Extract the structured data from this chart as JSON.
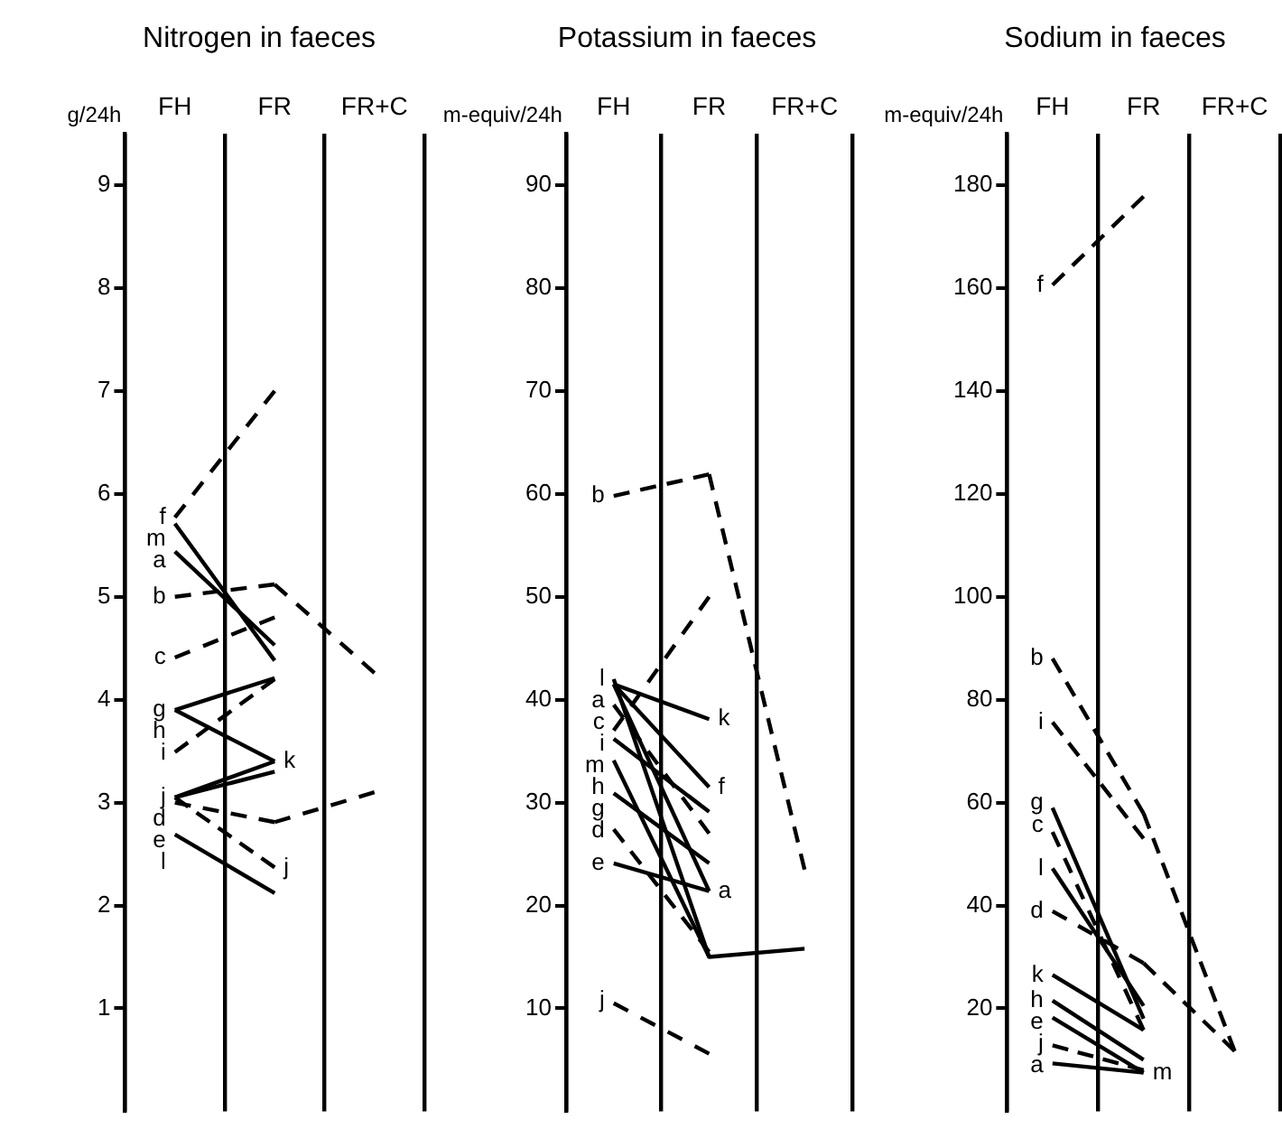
{
  "chart_data": [
    {
      "type": "line",
      "title": "Nitrogen in faeces",
      "ylabel": "g/24h",
      "categories": [
        "FH",
        "FR",
        "FR+C"
      ],
      "ylim": [
        0,
        9.5
      ],
      "yticks": [
        1,
        2,
        3,
        4,
        5,
        6,
        7,
        8,
        9
      ],
      "grid": "x",
      "marker": "none",
      "series": [
        {
          "color": "#000000",
          "line_style": "dashed",
          "values": [
            5.77,
            7.0,
            null
          ]
        },
        {
          "color": "#000000",
          "line_style": "solid",
          "values": [
            5.71,
            4.38,
            null
          ]
        },
        {
          "color": "#000000",
          "line_style": "solid",
          "values": [
            5.44,
            4.53,
            null
          ]
        },
        {
          "color": "#000000",
          "line_style": "dashed",
          "values": [
            5.0,
            5.12,
            4.26
          ]
        },
        {
          "color": "#000000",
          "line_style": "dashed",
          "values": [
            4.41,
            4.8,
            null
          ]
        },
        {
          "color": "#000000",
          "line_style": "solid",
          "values": [
            3.9,
            4.21,
            null
          ]
        },
        {
          "color": "#000000",
          "line_style": "solid",
          "values": [
            3.9,
            3.4,
            null
          ]
        },
        {
          "color": "#000000",
          "line_style": "dashed",
          "values": [
            3.49,
            4.2,
            null
          ]
        },
        {
          "color": "#000000",
          "line_style": "dashed",
          "values": [
            3.05,
            2.37,
            null
          ]
        },
        {
          "color": "#000000",
          "line_style": "solid",
          "values": [
            3.05,
            3.3,
            null
          ]
        },
        {
          "color": "#000000",
          "line_style": "solid",
          "values": [
            3.05,
            3.4,
            null
          ]
        },
        {
          "color": "#000000",
          "line_style": "dashed",
          "values": [
            3.0,
            2.81,
            3.1
          ]
        },
        {
          "color": "#000000",
          "line_style": "solid",
          "values": [
            2.69,
            2.12,
            null
          ]
        }
      ],
      "annotations": [
        {
          "text": "f",
          "x": "FH",
          "y": 5.77
        },
        {
          "text": "m",
          "x": "FH",
          "y": 5.71
        },
        {
          "text": "a",
          "x": "FH",
          "y": 5.44
        },
        {
          "text": "b",
          "x": "FH",
          "y": 5.0
        },
        {
          "text": "c",
          "x": "FH",
          "y": 4.41
        },
        {
          "text": "g",
          "x": "FH",
          "y": 3.9
        },
        {
          "text": "h",
          "x": "FH",
          "y": 3.9
        },
        {
          "text": "i",
          "x": "FH",
          "y": 3.49
        },
        {
          "text": "j",
          "x": "FH",
          "y": 3.05
        },
        {
          "text": "d",
          "x": "FH",
          "y": 3.05
        },
        {
          "text": "e",
          "x": "FH",
          "y": 3.0
        },
        {
          "text": "l",
          "x": "FH",
          "y": 2.69
        },
        {
          "text": "k",
          "x": "FR",
          "y": 3.4
        },
        {
          "text": "j",
          "x": "FR",
          "y": 2.37
        }
      ]
    },
    {
      "type": "line",
      "title": "Potassium in faeces",
      "ylabel": "m-equiv/24h",
      "categories": [
        "FH",
        "FR",
        "FR+C"
      ],
      "ylim": [
        0,
        95
      ],
      "yticks": [
        10,
        20,
        30,
        40,
        50,
        60,
        70,
        80,
        90
      ],
      "grid": "x",
      "marker": "none",
      "series": [
        {
          "color": "#000000",
          "line_style": "dashed",
          "values": [
            59.8,
            61.9,
            23.5
          ]
        },
        {
          "color": "#000000",
          "line_style": "solid",
          "values": [
            42,
            15,
            15.8
          ]
        },
        {
          "color": "#000000",
          "line_style": "solid",
          "values": [
            41.5,
            21.4,
            null
          ]
        },
        {
          "color": "#000000",
          "line_style": "solid",
          "values": [
            41.5,
            38.1,
            null
          ]
        },
        {
          "color": "#000000",
          "line_style": "solid",
          "values": [
            41.5,
            31.5,
            null
          ]
        },
        {
          "color": "#000000",
          "line_style": "dashed",
          "values": [
            39.5,
            27,
            null
          ]
        },
        {
          "color": "#000000",
          "line_style": "dashed",
          "values": [
            37,
            50,
            null
          ]
        },
        {
          "color": "#000000",
          "line_style": "solid",
          "values": [
            36.2,
            29.1,
            null
          ]
        },
        {
          "color": "#000000",
          "line_style": "solid",
          "values": [
            34.1,
            15,
            null
          ]
        },
        {
          "color": "#000000",
          "line_style": "solid",
          "values": [
            30.9,
            24.1,
            null
          ]
        },
        {
          "color": "#000000",
          "line_style": "dashed",
          "values": [
            27.4,
            15.5,
            null
          ]
        },
        {
          "color": "#000000",
          "line_style": "solid",
          "values": [
            24.1,
            21.4,
            null
          ]
        },
        {
          "color": "#000000",
          "line_style": "dashed",
          "values": [
            10.5,
            5.6,
            null
          ]
        }
      ],
      "annotations": [
        {
          "text": "b",
          "x": "FH",
          "y": 59.8
        },
        {
          "text": "l",
          "x": "FH",
          "y": 42
        },
        {
          "text": "a",
          "x": "FH",
          "y": 41.6
        },
        {
          "text": "c",
          "x": "FH",
          "y": 39.6
        },
        {
          "text": "i",
          "x": "FH",
          "y": 37.6
        },
        {
          "text": "m",
          "x": "FH",
          "y": 35.6
        },
        {
          "text": "h",
          "x": "FH",
          "y": 33.6
        },
        {
          "text": "g",
          "x": "FH",
          "y": 30.9
        },
        {
          "text": "d",
          "x": "FH",
          "y": 27.4
        },
        {
          "text": "e",
          "x": "FH",
          "y": 24.1
        },
        {
          "text": "j",
          "x": "FH",
          "y": 10.8
        },
        {
          "text": "k",
          "x": "FR",
          "y": 38.1
        },
        {
          "text": "f",
          "x": "FR",
          "y": 31.5
        },
        {
          "text": "a",
          "x": "FR",
          "y": 21.4
        }
      ]
    },
    {
      "type": "line",
      "title": "Sodium in faeces",
      "ylabel": "m-equiv/24h",
      "categories": [
        "FH",
        "FR",
        "FR+C"
      ],
      "ylim": [
        0,
        190
      ],
      "yticks": [
        20,
        40,
        60,
        80,
        100,
        120,
        140,
        160,
        180
      ],
      "grid": "x",
      "marker": "none",
      "series": [
        {
          "color": "#000000",
          "line_style": "dashed",
          "values": [
            160.6,
            177.8,
            null
          ]
        },
        {
          "color": "#000000",
          "line_style": "dashed",
          "values": [
            88,
            57.9,
            11.7
          ]
        },
        {
          "color": "#000000",
          "line_style": "dashed",
          "values": [
            75.6,
            53,
            null
          ]
        },
        {
          "color": "#000000",
          "line_style": "solid",
          "values": [
            59,
            18,
            null
          ]
        },
        {
          "color": "#000000",
          "line_style": "dashed",
          "values": [
            54.3,
            15.8,
            null
          ]
        },
        {
          "color": "#000000",
          "line_style": "solid",
          "values": [
            47.2,
            20.5,
            null
          ]
        },
        {
          "color": "#000000",
          "line_style": "dashed",
          "values": [
            38.9,
            28.8,
            11.7
          ]
        },
        {
          "color": "#000000",
          "line_style": "solid",
          "values": [
            26.5,
            15.8,
            null
          ]
        },
        {
          "color": "#000000",
          "line_style": "solid",
          "values": [
            21.5,
            10,
            null
          ]
        },
        {
          "color": "#000000",
          "line_style": "solid",
          "values": [
            18.2,
            7.5,
            null
          ]
        },
        {
          "color": "#000000",
          "line_style": "dashed",
          "values": [
            12.8,
            8,
            null
          ]
        },
        {
          "color": "#000000",
          "line_style": "solid",
          "values": [
            9.3,
            7.5,
            null
          ]
        }
      ],
      "annotations": [
        {
          "text": "f",
          "x": "FH",
          "y": 160.6
        },
        {
          "text": "b",
          "x": "FH",
          "y": 88
        },
        {
          "text": "i",
          "x": "FH",
          "y": 75.6
        },
        {
          "text": "g",
          "x": "FH",
          "y": 60
        },
        {
          "text": "c",
          "x": "FH",
          "y": 55.5
        },
        {
          "text": "l",
          "x": "FH",
          "y": 47.2
        },
        {
          "text": "d",
          "x": "FH",
          "y": 38.9
        },
        {
          "text": "k",
          "x": "FH",
          "y": 26.5
        },
        {
          "text": "h",
          "x": "FH",
          "y": 21.5
        },
        {
          "text": "e",
          "x": "FH",
          "y": 18.2
        },
        {
          "text": "j",
          "x": "FH",
          "y": 13
        },
        {
          "text": "a",
          "x": "FH",
          "y": 9.3
        },
        {
          "text": "m",
          "x": "FR",
          "y": 7.5
        }
      ]
    }
  ]
}
